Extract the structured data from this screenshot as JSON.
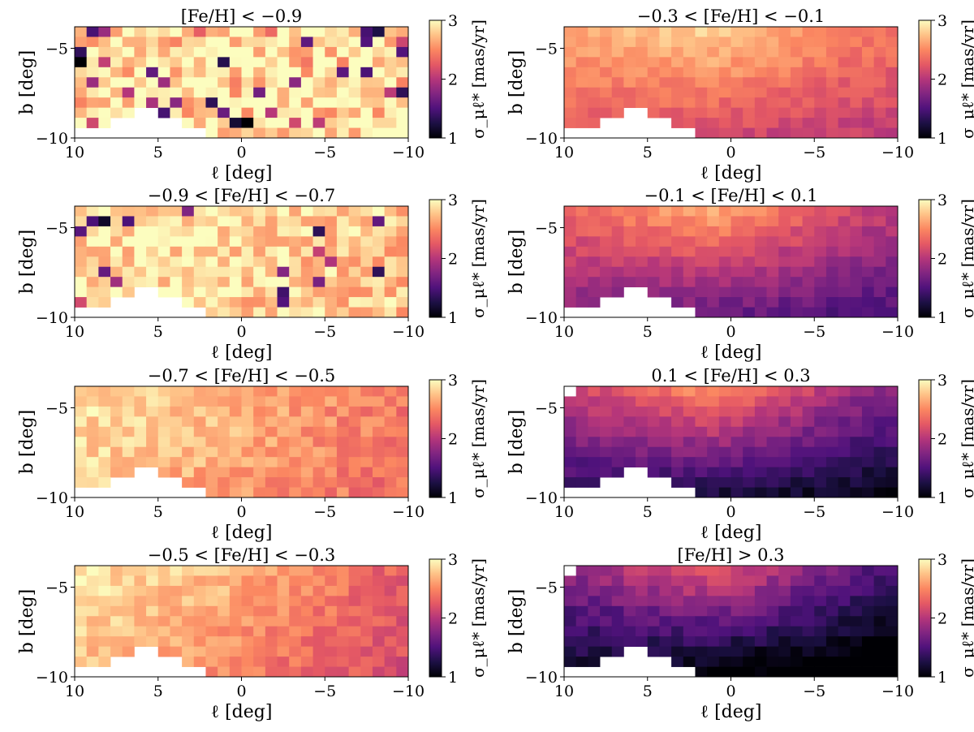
{
  "figure": {
    "colormap": "magma",
    "colormap_stops": [
      "#000004",
      "#1c1044",
      "#4f127b",
      "#812581",
      "#b5367a",
      "#e55964",
      "#fb8761",
      "#fec287",
      "#fcfdbf"
    ]
  },
  "chart_data": [
    {
      "type": "heatmap",
      "title": "[Fe/H] < −0.9",
      "xlabel": "ℓ [deg]",
      "ylabel": "b [deg]",
      "xlim": [
        10,
        -10
      ],
      "ylim": [
        -10,
        -3.8
      ],
      "xticks": [
        {
          "value": 10,
          "label": "10"
        },
        {
          "value": 5,
          "label": "5"
        },
        {
          "value": 0,
          "label": "0"
        },
        {
          "value": -5,
          "label": "−5"
        },
        {
          "value": -10,
          "label": "−10"
        }
      ],
      "yticks": [
        {
          "value": -5,
          "label": "−5"
        },
        {
          "value": -10,
          "label": "−10"
        }
      ],
      "colorbar": {
        "label": "σ_μℓ* [mas/yr]",
        "min": 1,
        "max": 3,
        "ticks": [
          "3",
          "2",
          "1"
        ]
      },
      "grid": {
        "nx": 28,
        "ny": 11
      },
      "base_mean": 2.85,
      "top_boost": 0.15,
      "right_gradient": -0.05,
      "bottom_gradient": 0.0,
      "noise": 0.8,
      "seed": 11,
      "outlier_fraction": 0.12,
      "missing": [
        10,
        9
      ]
    },
    {
      "type": "heatmap",
      "title": "−0.9 < [Fe/H] < −0.7",
      "xlabel": "ℓ [deg]",
      "ylabel": "b [deg]",
      "xlim": [
        10,
        -10
      ],
      "ylim": [
        -10,
        -3.8
      ],
      "xticks": [
        {
          "value": 10,
          "label": "10"
        },
        {
          "value": 5,
          "label": "5"
        },
        {
          "value": 0,
          "label": "0"
        },
        {
          "value": -5,
          "label": "−5"
        },
        {
          "value": -10,
          "label": "−10"
        }
      ],
      "yticks": [
        {
          "value": -5,
          "label": "−5"
        },
        {
          "value": -10,
          "label": "−10"
        }
      ],
      "colorbar": {
        "label": "σ_μℓ* [mas/yr]",
        "min": 1,
        "max": 3,
        "ticks": [
          "3",
          "2",
          "1"
        ]
      },
      "grid": {
        "nx": 28,
        "ny": 11
      },
      "base_mean": 2.85,
      "top_boost": 0.1,
      "right_gradient": -0.1,
      "bottom_gradient": 0.0,
      "noise": 0.55,
      "seed": 23,
      "outlier_fraction": 0.05,
      "missing": [
        9
      ]
    },
    {
      "type": "heatmap",
      "title": "−0.7 < [Fe/H] < −0.5",
      "xlabel": "ℓ [deg]",
      "ylabel": "b [deg]",
      "xlim": [
        10,
        -10
      ],
      "ylim": [
        -10,
        -3.8
      ],
      "xticks": [
        {
          "value": 10,
          "label": "10"
        },
        {
          "value": 5,
          "label": "5"
        },
        {
          "value": 0,
          "label": "0"
        },
        {
          "value": -5,
          "label": "−5"
        },
        {
          "value": -10,
          "label": "−10"
        }
      ],
      "yticks": [
        {
          "value": -5,
          "label": "−5"
        },
        {
          "value": -10,
          "label": "−10"
        }
      ],
      "colorbar": {
        "label": "σ_μℓ* [mas/yr]",
        "min": 1,
        "max": 3,
        "ticks": [
          "3",
          "2",
          "1"
        ]
      },
      "grid": {
        "nx": 28,
        "ny": 11
      },
      "base_mean": 2.85,
      "top_boost": 0.1,
      "right_gradient": -0.45,
      "bottom_gradient": -0.05,
      "noise": 0.35,
      "seed": 37,
      "outlier_fraction": 0.0,
      "missing": [
        10
      ]
    },
    {
      "type": "heatmap",
      "title": "−0.5 < [Fe/H] < −0.3",
      "xlabel": "ℓ [deg]",
      "ylabel": "b [deg]",
      "xlim": [
        10,
        -10
      ],
      "ylim": [
        -10,
        -3.8
      ],
      "xticks": [
        {
          "value": 10,
          "label": "10"
        },
        {
          "value": 5,
          "label": "5"
        },
        {
          "value": 0,
          "label": "0"
        },
        {
          "value": -5,
          "label": "−5"
        },
        {
          "value": -10,
          "label": "−10"
        }
      ],
      "yticks": [
        {
          "value": -5,
          "label": "−5"
        },
        {
          "value": -10,
          "label": "−10"
        }
      ],
      "colorbar": {
        "label": "σ_μℓ* [mas/yr]",
        "min": 1,
        "max": 3,
        "ticks": [
          "3",
          "2",
          "1"
        ]
      },
      "grid": {
        "nx": 28,
        "ny": 11
      },
      "base_mean": 2.85,
      "top_boost": 0.15,
      "right_gradient": -0.6,
      "bottom_gradient": -0.1,
      "noise": 0.3,
      "seed": 41,
      "outlier_fraction": 0.0,
      "missing": [
        9
      ]
    },
    {
      "type": "heatmap",
      "title": "−0.3 < [Fe/H] < −0.1",
      "xlabel": "ℓ [deg]",
      "ylabel": "b [deg]",
      "xlim": [
        10,
        -10
      ],
      "ylim": [
        -10,
        -3.8
      ],
      "xticks": [
        {
          "value": 10,
          "label": "10"
        },
        {
          "value": 5,
          "label": "5"
        },
        {
          "value": 0,
          "label": "0"
        },
        {
          "value": -5,
          "label": "−5"
        },
        {
          "value": -10,
          "label": "−10"
        }
      ],
      "yticks": [
        {
          "value": -5,
          "label": "−5"
        },
        {
          "value": -10,
          "label": "−10"
        }
      ],
      "colorbar": {
        "label": "σ_μℓ* [mas/yr]",
        "min": 1,
        "max": 3,
        "ticks": [
          "3",
          "2",
          "1"
        ]
      },
      "grid": {
        "nx": 28,
        "ny": 11
      },
      "base_mean": 2.55,
      "top_boost": 0.35,
      "right_gradient": -0.2,
      "bottom_gradient": -0.3,
      "noise": 0.22,
      "seed": 53,
      "outlier_fraction": 0.0,
      "missing": [
        9
      ]
    },
    {
      "type": "heatmap",
      "title": "−0.1 < [Fe/H] < 0.1",
      "xlabel": "ℓ [deg]",
      "ylabel": "b [deg]",
      "xlim": [
        10,
        -10
      ],
      "ylim": [
        -10,
        -3.8
      ],
      "xticks": [
        {
          "value": 10,
          "label": "10"
        },
        {
          "value": 5,
          "label": "5"
        },
        {
          "value": 0,
          "label": "0"
        },
        {
          "value": -5,
          "label": "−5"
        },
        {
          "value": -10,
          "label": "−10"
        }
      ],
      "yticks": [
        {
          "value": -5,
          "label": "−5"
        },
        {
          "value": -10,
          "label": "−10"
        }
      ],
      "colorbar": {
        "label": "σ_μℓ* [mas/yr]",
        "min": 1,
        "max": 3,
        "ticks": [
          "3",
          "2",
          "1"
        ]
      },
      "grid": {
        "nx": 28,
        "ny": 11
      },
      "base_mean": 2.2,
      "top_boost": 0.55,
      "right_gradient": -0.25,
      "bottom_gradient": -0.45,
      "noise": 0.22,
      "seed": 67,
      "outlier_fraction": 0.0,
      "missing": [
        9
      ]
    },
    {
      "type": "heatmap",
      "title": "0.1 < [Fe/H] < 0.3",
      "xlabel": "ℓ [deg]",
      "ylabel": "b [deg]",
      "xlim": [
        10,
        -10
      ],
      "ylim": [
        -10,
        -3.8
      ],
      "xticks": [
        {
          "value": 10,
          "label": "10"
        },
        {
          "value": 5,
          "label": "5"
        },
        {
          "value": 0,
          "label": "0"
        },
        {
          "value": -5,
          "label": "−5"
        },
        {
          "value": -10,
          "label": "−10"
        }
      ],
      "yticks": [
        {
          "value": -5,
          "label": "−5"
        },
        {
          "value": -10,
          "label": "−10"
        }
      ],
      "colorbar": {
        "label": "σ_μℓ* [mas/yr]",
        "min": 1,
        "max": 3,
        "ticks": [
          "3",
          "2",
          "1"
        ]
      },
      "grid": {
        "nx": 28,
        "ny": 11
      },
      "base_mean": 1.85,
      "top_boost": 0.8,
      "right_gradient": -0.25,
      "bottom_gradient": -0.5,
      "noise": 0.22,
      "seed": 79,
      "outlier_fraction": 0.0,
      "missing": [
        0
      ]
    },
    {
      "type": "heatmap",
      "title": "[Fe/H] > 0.3",
      "xlabel": "ℓ [deg]",
      "ylabel": "b [deg]",
      "xlim": [
        10,
        -10
      ],
      "ylim": [
        -10,
        -3.8
      ],
      "xticks": [
        {
          "value": 10,
          "label": "10"
        },
        {
          "value": 5,
          "label": "5"
        },
        {
          "value": 0,
          "label": "0"
        },
        {
          "value": -5,
          "label": "−5"
        },
        {
          "value": -10,
          "label": "−10"
        }
      ],
      "yticks": [
        {
          "value": -5,
          "label": "−5"
        },
        {
          "value": -10,
          "label": "−10"
        }
      ],
      "colorbar": {
        "label": "σ_μℓ* [mas/yr]",
        "min": 1,
        "max": 3,
        "ticks": [
          "3",
          "2",
          "1"
        ]
      },
      "grid": {
        "nx": 28,
        "ny": 11
      },
      "base_mean": 1.6,
      "top_boost": 0.8,
      "right_gradient": -0.3,
      "bottom_gradient": -0.5,
      "noise": 0.25,
      "seed": 97,
      "outlier_fraction": 0.0,
      "missing": [
        0
      ]
    }
  ]
}
